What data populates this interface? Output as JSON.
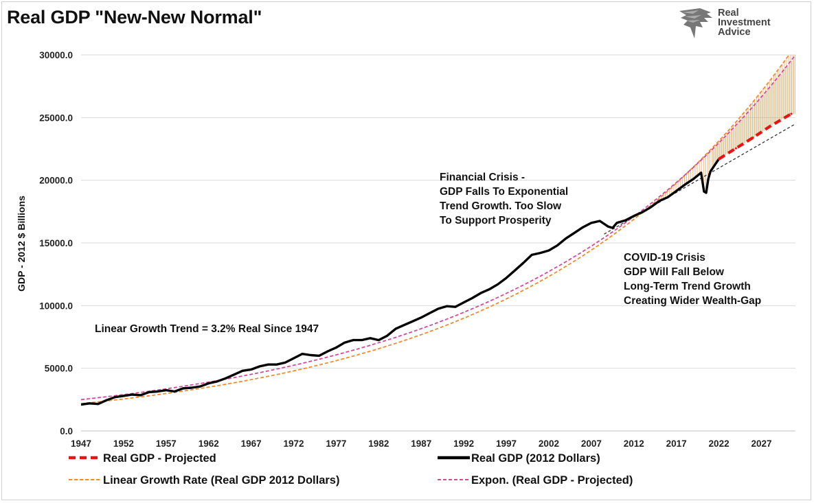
{
  "title": "Real GDP \"New-New Normal\"",
  "logo": {
    "line1": "Real",
    "line2": "Investment",
    "line3": "Advice"
  },
  "chart_data": {
    "type": "line",
    "ylabel": "GDP - 2012 $ Billions",
    "xlabel": "",
    "xlim": [
      1947,
      2031
    ],
    "ylim": [
      0,
      30000
    ],
    "y_ticks": [
      "0.0",
      "5000.0",
      "10000.0",
      "15000.0",
      "20000.0",
      "25000.0",
      "30000.0"
    ],
    "x_ticks": [
      "1947",
      "1952",
      "1957",
      "1962",
      "1967",
      "1972",
      "1977",
      "1982",
      "1987",
      "1992",
      "1997",
      "2002",
      "2007",
      "2012",
      "2017",
      "2022",
      "2027"
    ],
    "grid": "horizontal",
    "legend_position": "bottom",
    "series": [
      {
        "name": "Real GDP (2012 Dollars)",
        "color": "#000000",
        "style": "solid-thick",
        "x": [
          1947,
          1948,
          1949,
          1950,
          1951,
          1952,
          1953,
          1954,
          1955,
          1956,
          1957,
          1958,
          1959,
          1960,
          1961,
          1962,
          1963,
          1964,
          1965,
          1966,
          1967,
          1968,
          1969,
          1970,
          1971,
          1972,
          1973,
          1974,
          1975,
          1976,
          1977,
          1978,
          1979,
          1980,
          1981,
          1982,
          1983,
          1984,
          1985,
          1986,
          1987,
          1988,
          1989,
          1990,
          1991,
          1992,
          1993,
          1994,
          1995,
          1996,
          1997,
          1998,
          1999,
          2000,
          2001,
          2002,
          2003,
          2004,
          2005,
          2006,
          2007,
          2008,
          2009,
          2009.5,
          2010,
          2011,
          2012,
          2013,
          2014,
          2015,
          2016,
          2017,
          2018,
          2019,
          2019.9,
          2020.25,
          2020.5,
          2020.75,
          2021,
          2021.5,
          2022
        ],
        "values": [
          2100,
          2200,
          2150,
          2450,
          2700,
          2800,
          2900,
          2850,
          3100,
          3150,
          3250,
          3150,
          3400,
          3450,
          3550,
          3800,
          3950,
          4200,
          4500,
          4800,
          4900,
          5150,
          5300,
          5300,
          5450,
          5800,
          6150,
          6050,
          6000,
          6350,
          6650,
          7050,
          7250,
          7250,
          7400,
          7250,
          7600,
          8150,
          8450,
          8750,
          9050,
          9400,
          9750,
          9950,
          9900,
          10250,
          10600,
          11000,
          11300,
          11700,
          12200,
          12800,
          13400,
          14050,
          14200,
          14400,
          14800,
          15350,
          15800,
          16250,
          16600,
          16750,
          16300,
          16200,
          16600,
          16800,
          17150,
          17450,
          17850,
          18350,
          18650,
          19150,
          19650,
          20100,
          20600,
          19100,
          19000,
          20100,
          20700,
          21200,
          21700
        ]
      },
      {
        "name": "Real GDP - Projected",
        "color": "#ee1111",
        "style": "dashed-thick",
        "x": [
          2022,
          2024,
          2026,
          2028,
          2030.5
        ],
        "values": [
          21700,
          22550,
          23400,
          24300,
          25300
        ]
      },
      {
        "name": "Linear Growth Rate (Real GDP 2012 Dollars)",
        "color": "#f08a2b",
        "style": "dashed",
        "growth_rate_pct": 3.2,
        "base_year": 1947,
        "base_value": 2180
      },
      {
        "name": "Expon. (Real GDP - Projected)",
        "color": "#d6479c",
        "style": "dashed",
        "x": [
          1947,
          2031
        ],
        "values": [
          2500,
          30000
        ]
      }
    ],
    "trend_reference": {
      "color": "#333333",
      "style": "dotted",
      "x": [
        2008.5,
        2031
      ],
      "values": [
        15700,
        24500
      ]
    },
    "annotations": {
      "linear": "Linear Growth Trend = 3.2% Real Since 1947",
      "financial_crisis": [
        "Financial Crisis -",
        "GDP Falls To Exponential",
        "Trend Growth. Too Slow",
        "To Support Prosperity"
      ],
      "covid": [
        "COVID-19 Crisis",
        "GDP Will Fall Below",
        "Long-Term Trend Growth",
        "Creating Wider Wealth-Gap"
      ]
    }
  }
}
